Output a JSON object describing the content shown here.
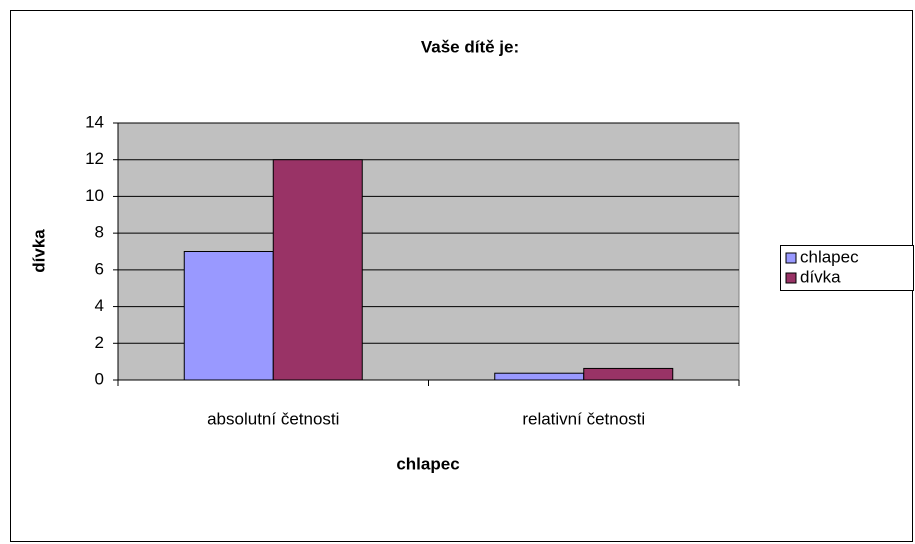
{
  "chart_data": {
    "type": "bar",
    "title": "Vaše dítě je:",
    "x_label": "chlapec",
    "y_label": "dívka",
    "categories": [
      "absolutní četnosti",
      "relativní četnosti"
    ],
    "series": [
      {
        "name": "chlapec",
        "color": "#9999ff",
        "values": [
          7,
          0.37
        ]
      },
      {
        "name": "dívka",
        "color": "#993366",
        "values": [
          12,
          0.63
        ]
      }
    ],
    "ylim": [
      0,
      14
    ],
    "yticks": [
      0,
      2,
      4,
      6,
      8,
      10,
      12,
      14
    ],
    "grid": true,
    "legend": "right"
  }
}
